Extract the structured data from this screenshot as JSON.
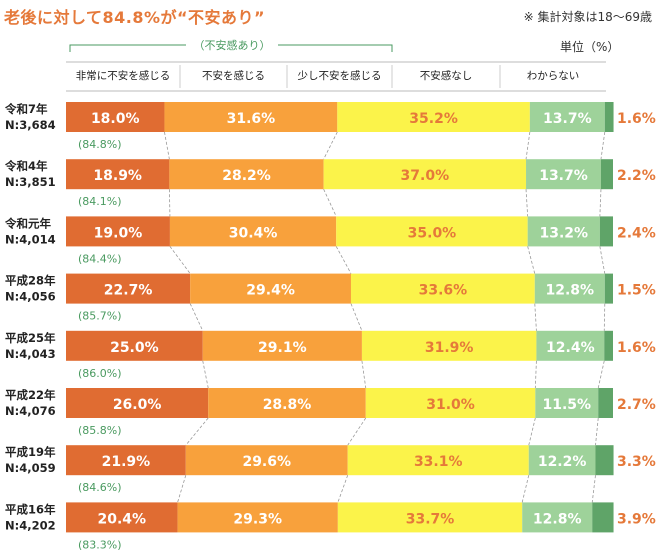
{
  "title": "老後に対して84.8%が“不安あり”",
  "note": "※ 集計対象は18～69歳",
  "unit": "単位（%）",
  "bracket_label": "（不安感あり）",
  "colors": {
    "very_anxious": "#e06c32",
    "anxious": "#f8a13c",
    "slightly": "#fbf34a",
    "not_anxious": "#9ed29a",
    "unknown": "#5fa468",
    "remainder_text": "#e5793a",
    "sum_text": "#4a9a60"
  },
  "chart_data": {
    "type": "bar",
    "orientation": "horizontal",
    "stacked": true,
    "title": "老後に対して84.8%が“不安あり”",
    "xlim": [
      0,
      100
    ],
    "categories": [
      "令和7年 N:3,684",
      "令和4年 N:3,851",
      "令和元年 N:4,014",
      "平成28年 N:4,056",
      "平成25年 N:4,043",
      "平成22年 N:4,076",
      "平成19年 N:4,059",
      "平成16年 N:4,202"
    ],
    "rows": [
      {
        "era": "令和7年",
        "n": "N:3,684",
        "total": "(84.8%)"
      },
      {
        "era": "令和4年",
        "n": "N:3,851",
        "total": "(84.1%)"
      },
      {
        "era": "令和元年",
        "n": "N:4,014",
        "total": "(84.4%)"
      },
      {
        "era": "平成28年",
        "n": "N:4,056",
        "total": "(85.7%)"
      },
      {
        "era": "平成25年",
        "n": "N:4,043",
        "total": "(86.0%)"
      },
      {
        "era": "平成22年",
        "n": "N:4,076",
        "total": "(85.8%)"
      },
      {
        "era": "平成19年",
        "n": "N:4,059",
        "total": "(84.6%)"
      },
      {
        "era": "平成16年",
        "n": "N:4,202",
        "total": "(83.3%)"
      }
    ],
    "series": [
      {
        "name": "非常に不安を感じる",
        "values": [
          18.0,
          18.9,
          19.0,
          22.7,
          25.0,
          26.0,
          21.9,
          20.4
        ]
      },
      {
        "name": "不安を感じる",
        "values": [
          31.6,
          28.2,
          30.4,
          29.4,
          29.1,
          28.8,
          29.6,
          29.3
        ]
      },
      {
        "name": "少し不安を感じる",
        "values": [
          35.2,
          37.0,
          35.0,
          33.6,
          31.9,
          31.0,
          33.1,
          33.7
        ]
      },
      {
        "name": "不安感なし",
        "values": [
          13.7,
          13.7,
          13.2,
          12.8,
          12.4,
          11.5,
          12.2,
          12.8
        ]
      },
      {
        "name": "わからない",
        "values": [
          1.6,
          2.2,
          2.4,
          1.5,
          1.6,
          2.7,
          3.3,
          3.9
        ]
      }
    ]
  }
}
